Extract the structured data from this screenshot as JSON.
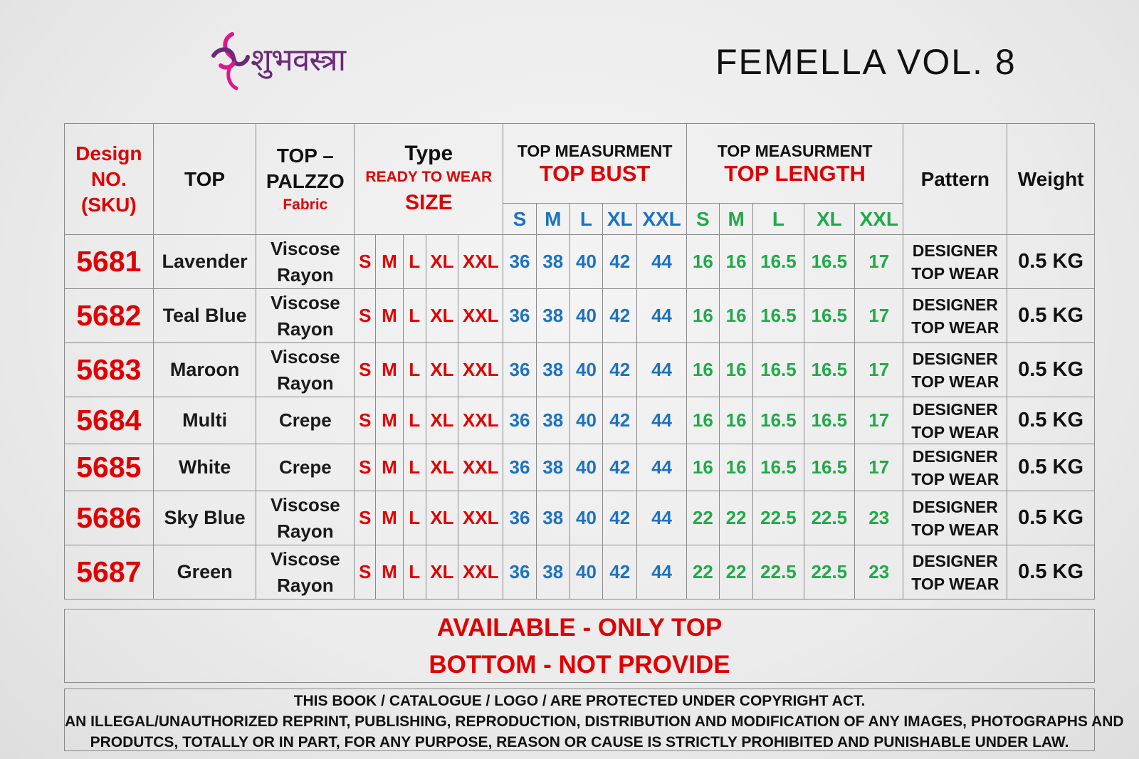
{
  "brand": {
    "logo_text": "शुभवस्त्रा",
    "logo_color": "#6b2a78",
    "accent_color": "#e0168a"
  },
  "catalog_title": "FEMELLA VOL. 8",
  "header": {
    "design_no": [
      "Design",
      "NO.",
      "(SKU)"
    ],
    "top": "TOP",
    "fabric_title": [
      "TOP –",
      "PALZZO"
    ],
    "fabric_sub": "Fabric",
    "type_title": "Type",
    "type_sub": "READY TO WEAR",
    "type_size": "SIZE",
    "bust_group": "TOP MEASURMENT",
    "bust_title": "TOP BUST",
    "length_group": "TOP MEASURMENT",
    "length_title": "TOP LENGTH",
    "pattern": "Pattern",
    "weight": "Weight",
    "sizes": [
      "S",
      "M",
      "L",
      "XL",
      "XXL"
    ]
  },
  "rows": [
    {
      "sku": "5681",
      "color": "Lavender",
      "fabric": [
        "Viscose",
        "Rayon"
      ],
      "sizes": [
        "S",
        "M",
        "L",
        "XL",
        "XXL"
      ],
      "bust": [
        "36",
        "38",
        "40",
        "42",
        "44"
      ],
      "length": [
        "16",
        "16",
        "16.5",
        "16.5",
        "17"
      ],
      "pattern": [
        "DESIGNER",
        "TOP WEAR"
      ],
      "weight": "0.5 KG"
    },
    {
      "sku": "5682",
      "color": "Teal Blue",
      "fabric": [
        "Viscose",
        "Rayon"
      ],
      "sizes": [
        "S",
        "M",
        "L",
        "XL",
        "XXL"
      ],
      "bust": [
        "36",
        "38",
        "40",
        "42",
        "44"
      ],
      "length": [
        "16",
        "16",
        "16.5",
        "16.5",
        "17"
      ],
      "pattern": [
        "DESIGNER",
        "TOP WEAR"
      ],
      "weight": "0.5 KG"
    },
    {
      "sku": "5683",
      "color": "Maroon",
      "fabric": [
        "Viscose",
        "Rayon"
      ],
      "sizes": [
        "S",
        "M",
        "L",
        "XL",
        "XXL"
      ],
      "bust": [
        "36",
        "38",
        "40",
        "42",
        "44"
      ],
      "length": [
        "16",
        "16",
        "16.5",
        "16.5",
        "17"
      ],
      "pattern": [
        "DESIGNER",
        "TOP WEAR"
      ],
      "weight": "0.5 KG"
    },
    {
      "sku": "5684",
      "color": "Multi",
      "fabric": [
        "Crepe"
      ],
      "sizes": [
        "S",
        "M",
        "L",
        "XL",
        "XXL"
      ],
      "bust": [
        "36",
        "38",
        "40",
        "42",
        "44"
      ],
      "length": [
        "16",
        "16",
        "16.5",
        "16.5",
        "17"
      ],
      "pattern": [
        "DESIGNER",
        "TOP WEAR"
      ],
      "weight": "0.5 KG"
    },
    {
      "sku": "5685",
      "color": "White",
      "fabric": [
        "Crepe"
      ],
      "sizes": [
        "S",
        "M",
        "L",
        "XL",
        "XXL"
      ],
      "bust": [
        "36",
        "38",
        "40",
        "42",
        "44"
      ],
      "length": [
        "16",
        "16",
        "16.5",
        "16.5",
        "17"
      ],
      "pattern": [
        "DESIGNER",
        "TOP WEAR"
      ],
      "weight": "0.5 KG"
    },
    {
      "sku": "5686",
      "color": "Sky Blue",
      "fabric": [
        "Viscose",
        "Rayon"
      ],
      "sizes": [
        "S",
        "M",
        "L",
        "XL",
        "XXL"
      ],
      "bust": [
        "36",
        "38",
        "40",
        "42",
        "44"
      ],
      "length": [
        "22",
        "22",
        "22.5",
        "22.5",
        "23"
      ],
      "pattern": [
        "DESIGNER",
        "TOP WEAR"
      ],
      "weight": "0.5 KG"
    },
    {
      "sku": "5687",
      "color": "Green",
      "fabric": [
        "Viscose",
        "Rayon"
      ],
      "sizes": [
        "S",
        "M",
        "L",
        "XL",
        "XXL"
      ],
      "bust": [
        "36",
        "38",
        "40",
        "42",
        "44"
      ],
      "length": [
        "22",
        "22",
        "22.5",
        "22.5",
        "23"
      ],
      "pattern": [
        "DESIGNER",
        "TOP WEAR"
      ],
      "weight": "0.5 KG"
    }
  ],
  "availability": [
    "AVAILABLE - ONLY TOP",
    "BOTTOM - NOT PROVIDE"
  ],
  "copyright": [
    "THIS BOOK / CATALOGUE  / LOGO / ARE  PROTECTED UNDER COPYRIGHT ACT.",
    "AN ILLEGAL/UNAUTHORIZED REPRINT, PUBLISHING, REPRODUCTION, DISTRIBUTION AND MODIFICATION OF ANY IMAGES, PHOTOGRAPHS AND",
    "PRODUTCS,    TOTALLY OR IN PART, FOR ANY PURPOSE, REASON OR CAUSE IS STRICTLY PROHIBITED AND PUNISHABLE UNDER LAW."
  ],
  "colors": {
    "red": "#e00000",
    "blue": "#1d72c0",
    "green": "#22a94a"
  }
}
